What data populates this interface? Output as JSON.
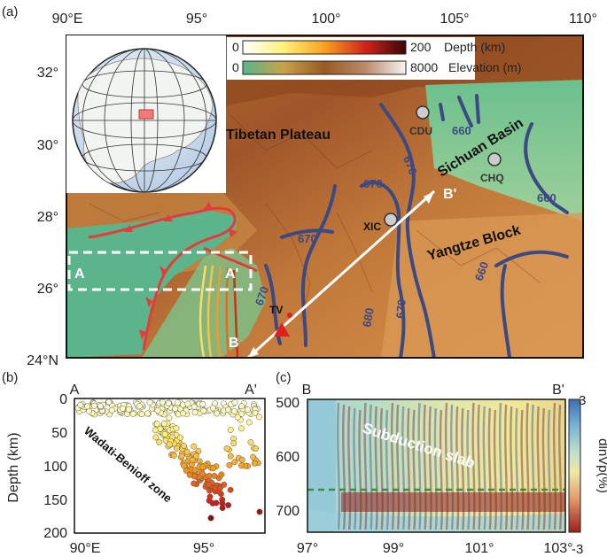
{
  "panel_a": {
    "label": "(a)",
    "lon_ticks": [
      "90°E",
      "95°",
      "100°",
      "105°",
      "110°"
    ],
    "lat_ticks": [
      "32°",
      "30°",
      "28°",
      "26°",
      "24°N"
    ],
    "depth_bar": {
      "min": "0",
      "max": "200",
      "label": "Depth (km)"
    },
    "elev_bar": {
      "min": "0",
      "max": "8000",
      "label": "Elevation (m)"
    },
    "regions": {
      "tibet": "Tibetan Plateau",
      "sichuan": "Sichuan Basin",
      "yangtze": "Yangtze Block"
    },
    "cities": {
      "cdu": "CDU",
      "chq": "CHQ",
      "xic": "XIC",
      "tv": "TV"
    },
    "contour_labels": [
      "660",
      "670",
      "670",
      "660",
      "670",
      "670",
      "660",
      "680",
      "670"
    ],
    "profile_labels": {
      "a": "A",
      "a_prime": "A'",
      "b": "B",
      "b_prime": "B'"
    }
  },
  "panel_b": {
    "label": "(b)",
    "left": "A",
    "right": "A'",
    "ylabel": "Depth (km)",
    "yticks": [
      "0",
      "50",
      "100",
      "150",
      "200"
    ],
    "xticks": [
      "90°E",
      "95°"
    ],
    "annotation": "Wadati-Benioff zone"
  },
  "panel_c": {
    "label": "(c)",
    "left": "B",
    "right": "B'",
    "yticks": [
      "500",
      "600",
      "700"
    ],
    "xticks": [
      "97°",
      "99°",
      "101°",
      "103°"
    ],
    "annotation": "Subduction slab",
    "cbar_label": "dlnVp(%)",
    "cbar_max": "3",
    "cbar_min": "-3"
  },
  "colors": {
    "contour": "#3b4a82",
    "suture": "#e53b3b",
    "profile": "#ffffff",
    "sea": "#5cb48a"
  }
}
